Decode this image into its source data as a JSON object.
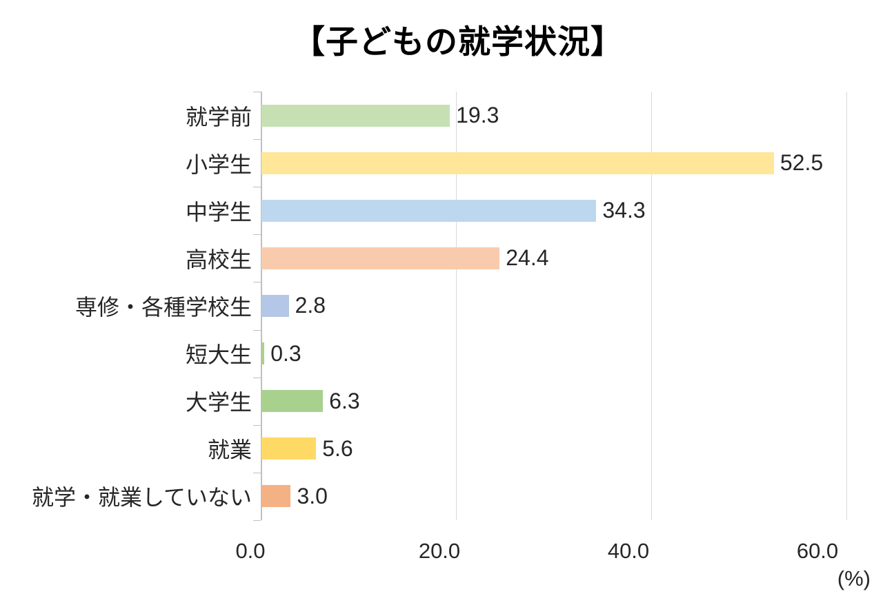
{
  "chart_data": {
    "type": "bar",
    "orientation": "horizontal",
    "title": "【子どもの就学状況】",
    "unit_label": "(%)",
    "categories": [
      "就学前",
      "小学生",
      "中学生",
      "高校生",
      "専修・各種学校生",
      "短大生",
      "大学生",
      "就業",
      "就学・就業していない"
    ],
    "values": [
      19.3,
      52.5,
      34.3,
      24.4,
      2.8,
      0.3,
      6.3,
      5.6,
      3.0
    ],
    "value_labels": [
      "19.3",
      "52.5",
      "34.3",
      "24.4",
      "2.8",
      "0.3",
      "6.3",
      "5.6",
      "3.0"
    ],
    "bar_colors": [
      "#c6e0b4",
      "#ffe699",
      "#bdd7ee",
      "#f8cbad",
      "#b4c7e7",
      "#a9d18e",
      "#a9d18e",
      "#ffd966",
      "#f4b183"
    ],
    "x_ticks": {
      "values": [
        0,
        20,
        40,
        60
      ],
      "labels": [
        "0.0",
        "20.0",
        "40.0",
        "60.0"
      ]
    },
    "xlim": [
      0,
      60
    ],
    "grid": true,
    "legend": false,
    "colors": {
      "gridline": "#d9d9d9",
      "axis": "#bfbfbf",
      "label_text": "#262626",
      "title_text": "#000000",
      "background": "#ffffff"
    }
  }
}
